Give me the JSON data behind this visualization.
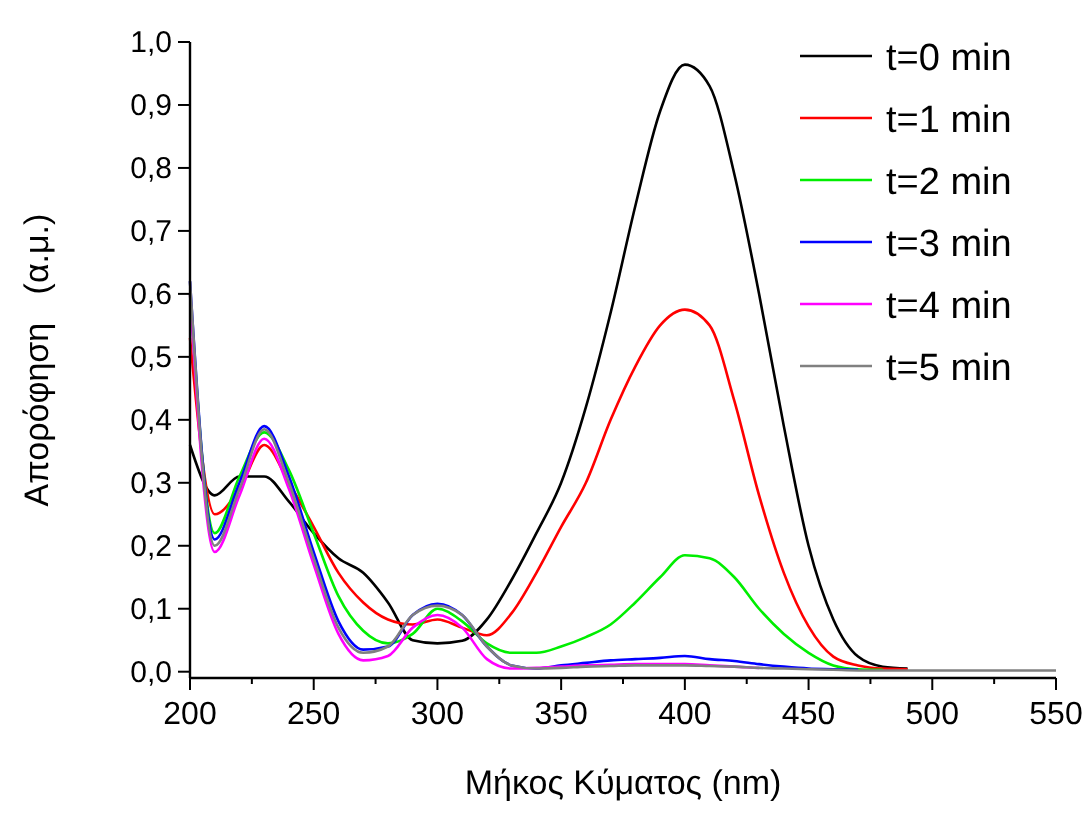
{
  "chart_data": {
    "type": "line",
    "xlabel": "Μήκος Κύματος (nm)",
    "ylabel": "Απορόφηση   (α.μ.)",
    "x": [
      200,
      210,
      220,
      230,
      240,
      250,
      260,
      270,
      280,
      290,
      300,
      310,
      320,
      330,
      340,
      350,
      360,
      370,
      380,
      390,
      400,
      410,
      420,
      430,
      440,
      450,
      460,
      470,
      480,
      490,
      500,
      525,
      550
    ],
    "xlim": [
      200,
      550
    ],
    "xticks": [
      200,
      {
        "value": 225,
        "label": null
      },
      250,
      {
        "value": 275,
        "label": null
      },
      300,
      {
        "value": 325,
        "label": null
      },
      350,
      {
        "value": 375,
        "label": null
      },
      400,
      {
        "value": 425,
        "label": null
      },
      450,
      {
        "value": 475,
        "label": null
      },
      500,
      {
        "value": 525,
        "label": null
      },
      550
    ],
    "ylim": [
      -0.01,
      1.0
    ],
    "yticks": [
      {
        "value": 0,
        "label": "0,0"
      },
      {
        "value": 0.1,
        "label": "0,1"
      },
      {
        "value": 0.2,
        "label": "0,2"
      },
      {
        "value": 0.3,
        "label": "0,3"
      },
      {
        "value": 0.4,
        "label": "0,4"
      },
      {
        "value": 0.5,
        "label": "0,5"
      },
      {
        "value": 0.6,
        "label": "0,6"
      },
      {
        "value": 0.7,
        "label": "0,7"
      },
      {
        "value": 0.8,
        "label": "0,8"
      },
      {
        "value": 0.9,
        "label": "0,9"
      },
      {
        "value": 1.0,
        "label": "1,0"
      }
    ],
    "grid": false,
    "legend": "top right",
    "marker": "none",
    "line_style": "solid",
    "series": [
      {
        "name": "t=0 min",
        "color": "#000000",
        "values": [
          0.36,
          0.28,
          0.31,
          0.31,
          0.27,
          0.22,
          0.18,
          0.157,
          0.11,
          0.05,
          0.045,
          0.049,
          0.083,
          0.146,
          0.22,
          0.3,
          0.42,
          0.57,
          0.74,
          0.89,
          0.964,
          0.93,
          0.79,
          0.6,
          0.39,
          0.2,
          0.083,
          0.024,
          0.008,
          0.005,
          null,
          null,
          null
        ]
      },
      {
        "name": "t=1 min",
        "color": "#ff0000",
        "values": [
          0.53,
          0.25,
          0.29,
          0.36,
          0.3,
          0.23,
          0.157,
          0.11,
          0.083,
          0.075,
          0.083,
          0.07,
          0.058,
          0.093,
          0.157,
          0.23,
          0.3,
          0.4,
          0.485,
          0.55,
          0.575,
          0.55,
          0.43,
          0.28,
          0.157,
          0.072,
          0.024,
          0.01,
          0.005,
          0.004,
          null,
          null,
          null
        ]
      },
      {
        "name": "t=2 min",
        "color": "#00ee00",
        "values": [
          0.6,
          0.22,
          0.31,
          0.38,
          0.32,
          0.22,
          0.12,
          0.065,
          0.045,
          0.06,
          0.1,
          0.08,
          0.045,
          0.03,
          0.03,
          0.04,
          0.055,
          0.075,
          0.11,
          0.15,
          0.185,
          0.18,
          0.15,
          0.1,
          0.06,
          0.03,
          0.01,
          0.004,
          0.003,
          null,
          null,
          null,
          null
        ]
      },
      {
        "name": "t=3 min",
        "color": "#0000ff",
        "values": [
          0.62,
          0.21,
          0.3,
          0.39,
          0.31,
          0.19,
          0.08,
          0.035,
          0.04,
          0.09,
          0.108,
          0.09,
          0.04,
          0.01,
          0.005,
          0.01,
          0.014,
          0.018,
          0.02,
          0.022,
          0.025,
          0.02,
          0.017,
          0.012,
          0.008,
          0.005,
          0.004,
          0.003,
          null,
          null,
          null,
          null,
          null
        ]
      },
      {
        "name": "t=4 min",
        "color": "#ff00ff",
        "values": [
          0.6,
          0.19,
          0.28,
          0.37,
          0.29,
          0.17,
          0.06,
          0.018,
          0.025,
          0.07,
          0.09,
          0.07,
          0.02,
          0.005,
          0.006,
          0.008,
          0.01,
          0.011,
          0.012,
          0.012,
          0.012,
          0.01,
          0.008,
          0.006,
          null,
          null,
          null,
          null,
          null,
          null,
          null,
          null,
          null
        ]
      },
      {
        "name": "t=5 min",
        "color": "#808080",
        "values": [
          0.62,
          0.2,
          0.29,
          0.385,
          0.3,
          0.18,
          0.07,
          0.03,
          0.04,
          0.09,
          0.105,
          0.09,
          0.04,
          0.01,
          0.005,
          0.006,
          0.008,
          0.009,
          0.01,
          0.01,
          0.01,
          0.009,
          0.008,
          0.006,
          0.005,
          0.004,
          0.003,
          0.002,
          0.002,
          0.002,
          0.002,
          0.002,
          0.002
        ]
      }
    ]
  }
}
